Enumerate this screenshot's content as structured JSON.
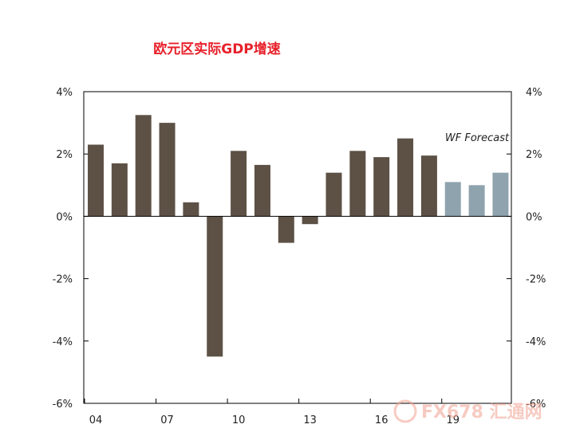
{
  "chart_data": {
    "type": "bar",
    "title": "欧元区实际GDP增速",
    "x": [
      2004,
      2005,
      2006,
      2007,
      2008,
      2009,
      2010,
      2011,
      2012,
      2013,
      2014,
      2015,
      2016,
      2017,
      2018,
      2019,
      2020,
      2021
    ],
    "x_tick_labels": [
      "04",
      "07",
      "10",
      "13",
      "16",
      "19"
    ],
    "x_tick_years": [
      2004,
      2007,
      2010,
      2013,
      2016,
      2019
    ],
    "series": [
      {
        "values": [
          2.3,
          1.7,
          3.25,
          3.0,
          0.45,
          -4.5,
          2.1,
          1.65,
          -0.85,
          -0.25,
          1.4,
          2.1,
          1.9,
          2.5,
          1.95,
          null,
          null,
          null
        ],
        "color": "#5d5146"
      },
      {
        "values": [
          null,
          null,
          null,
          null,
          null,
          null,
          null,
          null,
          null,
          null,
          null,
          null,
          null,
          null,
          null,
          1.1,
          1.0,
          1.4
        ],
        "color": "#8ea3ae"
      }
    ],
    "ylim": [
      -6,
      4
    ],
    "y_ticks": [
      4,
      2,
      0,
      -2,
      -4,
      -6
    ],
    "y_tick_labels": [
      "4%",
      "2%",
      "0%",
      "-2%",
      "-4%",
      "-6%"
    ],
    "annotation": "WF Forecast",
    "grid": false,
    "secondary_y_axis": true
  },
  "watermark": {
    "text": "FX678 汇通网"
  }
}
